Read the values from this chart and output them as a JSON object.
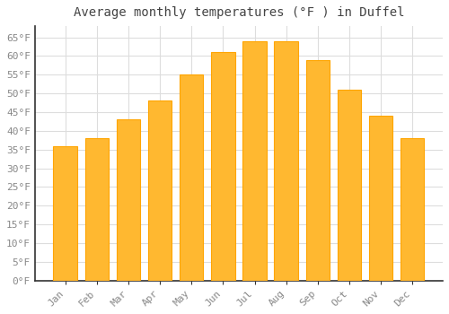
{
  "title": "Average monthly temperatures (°F ) in Duffel",
  "months": [
    "Jan",
    "Feb",
    "Mar",
    "Apr",
    "May",
    "Jun",
    "Jul",
    "Aug",
    "Sep",
    "Oct",
    "Nov",
    "Dec"
  ],
  "values": [
    36,
    38,
    43,
    48,
    55,
    61,
    64,
    64,
    59,
    51,
    44,
    38
  ],
  "bar_color_left": "#FFA500",
  "bar_color_right": "#FFD700",
  "bar_color_face": "#FFB830",
  "background_color": "#FFFFFF",
  "plot_bg_color": "#FFFFFF",
  "grid_color": "#DDDDDD",
  "axis_color": "#333333",
  "ylim": [
    0,
    68
  ],
  "yticks": [
    0,
    5,
    10,
    15,
    20,
    25,
    30,
    35,
    40,
    45,
    50,
    55,
    60,
    65
  ],
  "ylabel_suffix": "°F",
  "title_fontsize": 10,
  "tick_fontsize": 8,
  "font_color": "#888888",
  "title_color": "#444444"
}
